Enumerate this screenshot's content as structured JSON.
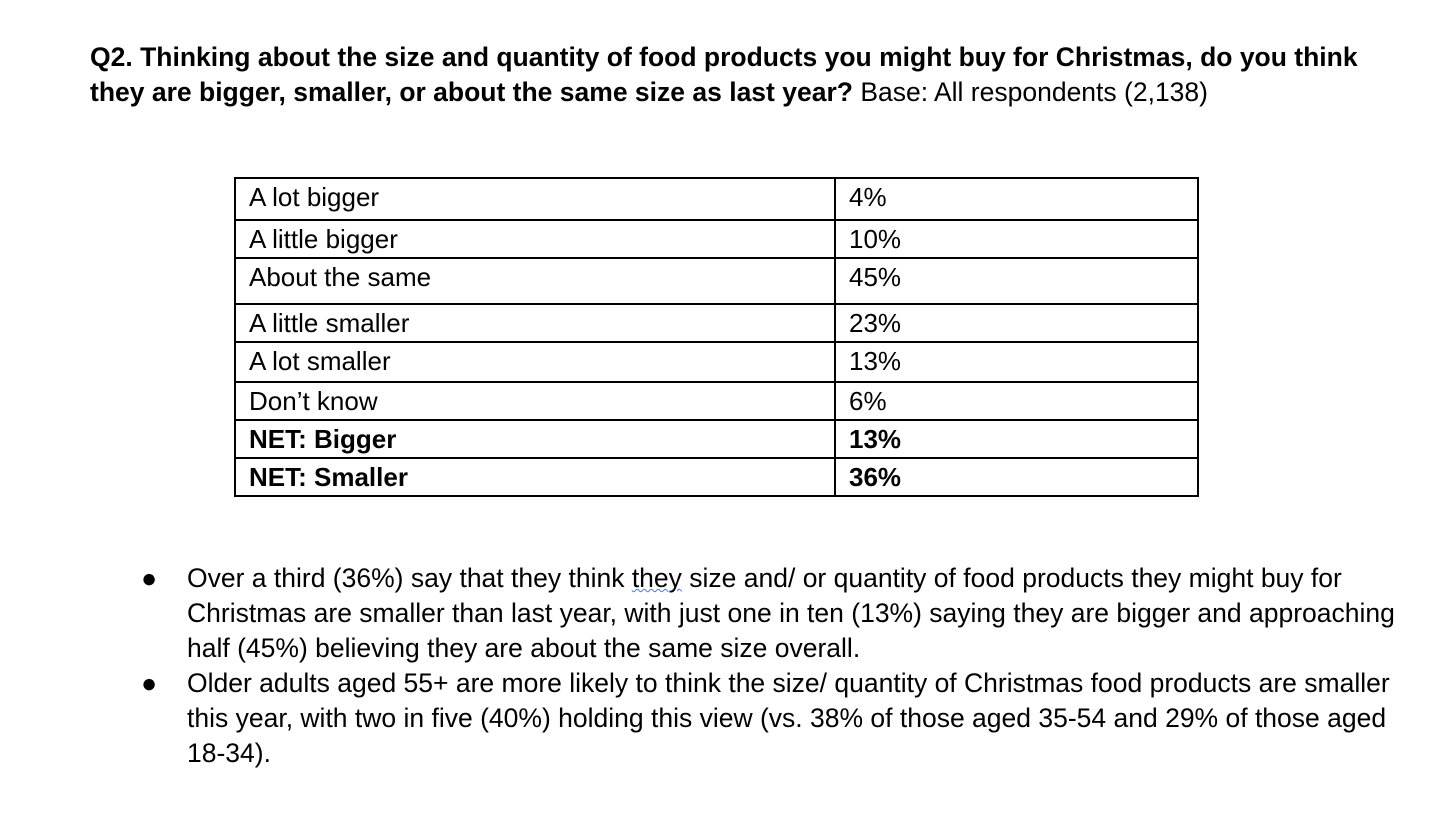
{
  "question": {
    "label": "Q2. Thinking about the size and quantity of food products you might buy for Christmas, do you think they are bigger, smaller, or about the same size as last year?",
    "base": "Base: All respondents (2,138)"
  },
  "table": {
    "rows": [
      {
        "label": "A lot bigger",
        "value": "4%"
      },
      {
        "label": "A little bigger",
        "value": "10%"
      },
      {
        "label": "About the same",
        "value": "45%"
      },
      {
        "label": "A little smaller",
        "value": "23%"
      },
      {
        "label": "A lot smaller",
        "value": "13%"
      },
      {
        "label": "Don’t know",
        "value": "6%"
      },
      {
        "label": "NET: Bigger",
        "value": "13%"
      },
      {
        "label": "NET: Smaller",
        "value": "36%"
      }
    ]
  },
  "bullets": [
    {
      "before": "Over a third (36%) say that they think ",
      "flagged": "they",
      "after": " size and/ or quantity of food products they might buy for Christmas are smaller than last year, with just one in ten (13%) saying they are bigger and approaching half (45%) believing they are about the same size overall."
    },
    {
      "before": "Older adults aged 55+ are more likely to think the size/ quantity of Christmas food products are smaller this year, with two in five (40%) holding this view (vs. 38% of those aged 35-54 and 29% of those aged 18-34).",
      "flagged": "",
      "after": ""
    }
  ],
  "bullet_glyph": "●"
}
